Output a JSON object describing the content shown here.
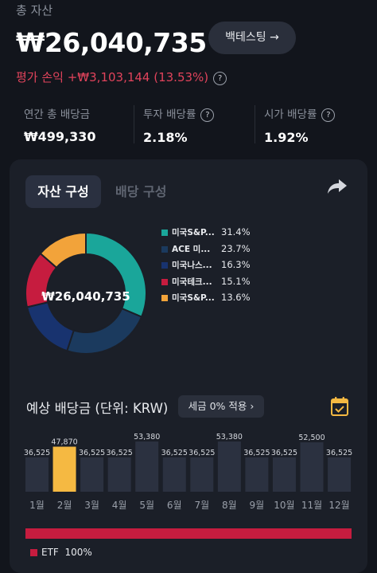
{
  "summary": {
    "total_label": "총 자산",
    "total_value": "₩26,040,735",
    "backtest_label": "백테스팅 →",
    "pnl_text": "평가 손익 +₩3,103,144 (13.53%)"
  },
  "stats": [
    {
      "label": "연간 총 배당금",
      "value": "₩499,330",
      "help": false
    },
    {
      "label": "투자 배당률",
      "value": "2.18%",
      "help": true
    },
    {
      "label": "시가 배당률",
      "value": "1.92%",
      "help": true
    }
  ],
  "tabs": {
    "asset": "자산 구성",
    "dividend": "배당 구성"
  },
  "composition": {
    "center_value": "₩26,040,735",
    "items": [
      {
        "name": "미국S&P...",
        "percent": "31.4%",
        "value": 31.4,
        "color": "#1aa69a"
      },
      {
        "name": "ACE 미...",
        "percent": "23.7%",
        "value": 23.7,
        "color": "#1b3a5e"
      },
      {
        "name": "미국나스...",
        "percent": "16.3%",
        "value": 16.3,
        "color": "#18336f"
      },
      {
        "name": "미국테크...",
        "percent": "15.1%",
        "value": 15.1,
        "color": "#c61c3f"
      },
      {
        "name": "미국S&P...",
        "percent": "13.6%",
        "value": 13.6,
        "color": "#f2a33a"
      }
    ]
  },
  "dividend": {
    "title": "예상 배당금 (단위: KRW)",
    "tax_label": "세금 0% 적용 ›",
    "highlight_color": "#f5b942",
    "bar_color": "#2b3140"
  },
  "chart_data": {
    "type": "bar",
    "categories": [
      "1월",
      "2월",
      "3월",
      "4월",
      "5월",
      "6월",
      "7월",
      "8월",
      "9월",
      "10월",
      "11월",
      "12월"
    ],
    "values": [
      36525,
      47870,
      36525,
      36525,
      53380,
      36525,
      36525,
      53380,
      36525,
      36525,
      52500,
      36525
    ],
    "value_labels": [
      "36,525",
      "47,870",
      "36,525",
      "36,525",
      "53,380",
      "36,525",
      "36,525",
      "53,380",
      "36,525",
      "36,525",
      "52,500",
      "36,525"
    ],
    "highlight_index": 1
  },
  "asset_type": {
    "label": "ETF",
    "percent": "100%",
    "fraction": 1.0
  }
}
